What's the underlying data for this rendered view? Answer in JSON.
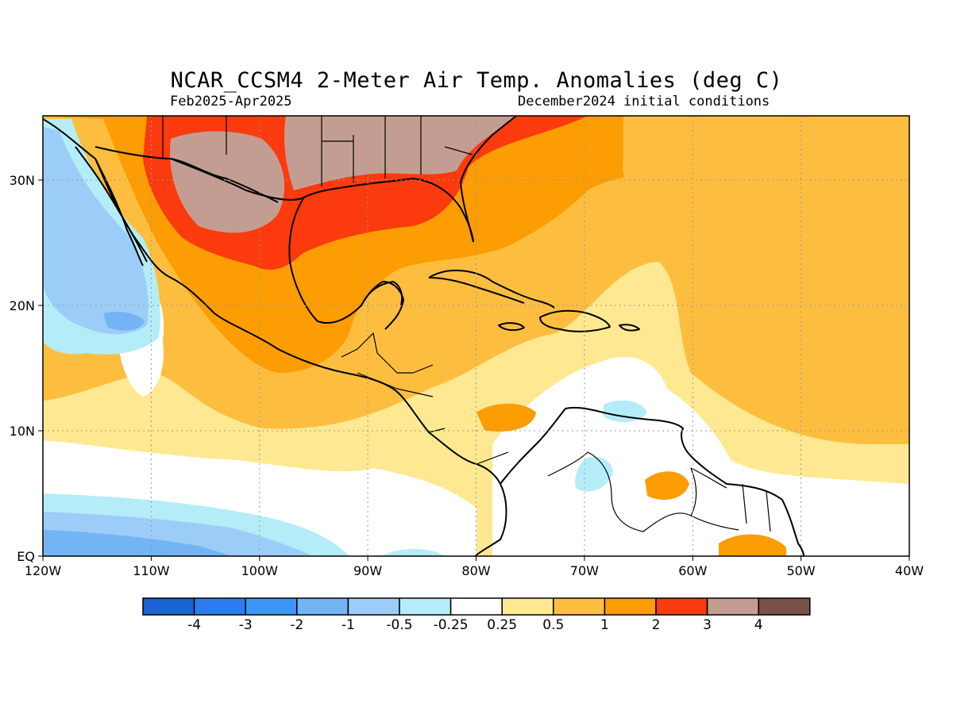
{
  "header": {
    "title": "NCAR_CCSM4 2-Meter Air Temp. Anomalies (deg C)",
    "period": "Feb2025-Apr2025",
    "init": "December2024 initial conditions"
  },
  "axes": {
    "lon_labels": [
      "120W",
      "110W",
      "100W",
      "90W",
      "80W",
      "70W",
      "60W",
      "50W",
      "40W"
    ],
    "lat_labels": [
      "EQ",
      "10N",
      "20N",
      "30N"
    ]
  },
  "colorbar": {
    "colors": [
      "#1a63d4",
      "#2c7ef0",
      "#3d96f6",
      "#73b4f5",
      "#9ccdf8",
      "#b4edf8",
      "#ffffff",
      "#fee891",
      "#fdbe40",
      "#fc9d03",
      "#fb3a0e",
      "#c49d92",
      "#7b5048"
    ],
    "labels": [
      "-4",
      "-3",
      "-2",
      "-1",
      "-0.5",
      "-0.25",
      "0.25",
      "0.5",
      "1",
      "2",
      "3",
      "4"
    ]
  },
  "colors": {
    "strong_warm": "#c49d92",
    "warm_3": "#fb3a0e",
    "warm_2": "#fc9d03",
    "warm_1": "#fdbe40",
    "warm_05": "#fee891",
    "neutral": "#ffffff",
    "cool_025": "#b4edf8",
    "cool_05": "#9ccdf8",
    "cool_1": "#73b4f5",
    "coast": "#000000"
  }
}
